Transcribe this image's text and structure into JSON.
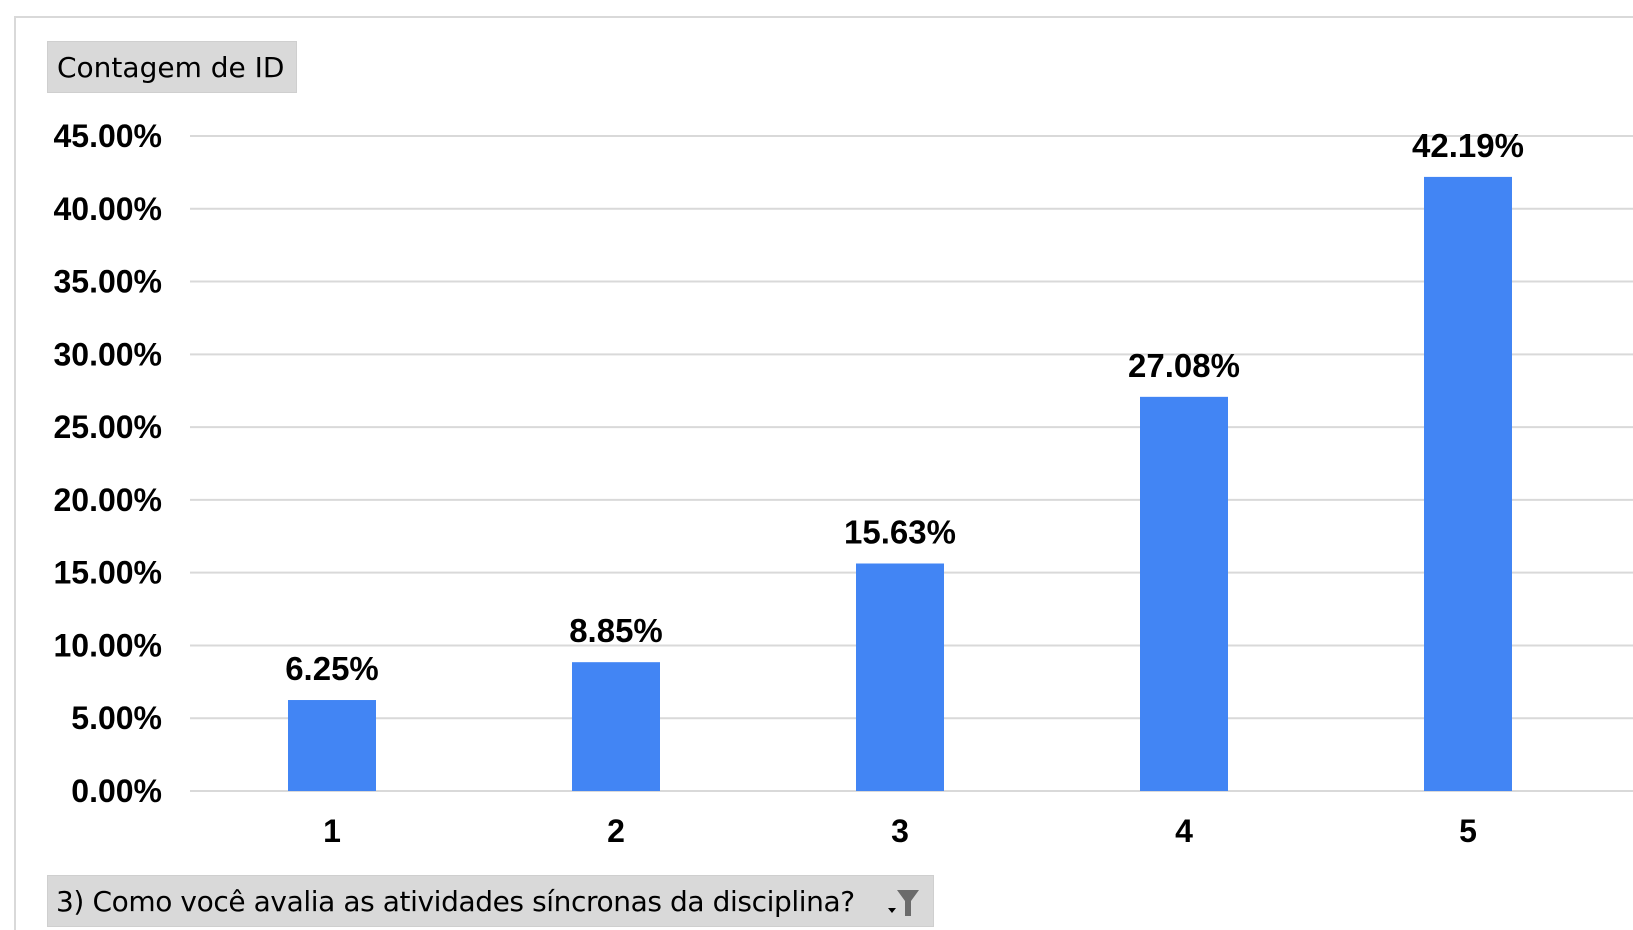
{
  "chart_data": {
    "type": "bar",
    "categories": [
      "1",
      "2",
      "3",
      "4",
      "5"
    ],
    "values": [
      6.25,
      8.85,
      15.63,
      27.08,
      42.19
    ],
    "data_labels": [
      "6.25%",
      "8.85%",
      "15.63%",
      "27.08%",
      "42.19%"
    ],
    "ylim": [
      0,
      45
    ],
    "yticks": [
      0,
      5,
      10,
      15,
      20,
      25,
      30,
      35,
      40,
      45
    ],
    "ytick_labels": [
      "0.00%",
      "5.00%",
      "10.00%",
      "15.00%",
      "20.00%",
      "25.00%",
      "30.00%",
      "35.00%",
      "40.00%",
      "45.00%"
    ],
    "bar_color": "#4285f4",
    "grid": true,
    "legend": "none"
  },
  "pivot": {
    "value_field_label": "Contagem de ID",
    "axis_field_label": "3) Como você avalia as atividades síncronas da disciplina?",
    "filter_icon": "filter-dropdown-icon"
  }
}
